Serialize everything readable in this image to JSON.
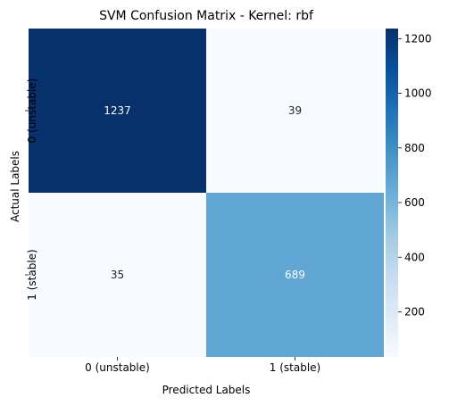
{
  "chart_data": {
    "type": "heatmap",
    "title": "SVM Confusion Matrix - Kernel: rbf",
    "xlabel": "Predicted Labels",
    "ylabel": "Actual Labels",
    "x_categories": [
      "0 (unstable)",
      "1 (stable)"
    ],
    "y_categories": [
      "0 (unstable)",
      "1 (stable)"
    ],
    "values": [
      [
        1237,
        39
      ],
      [
        35,
        689
      ]
    ],
    "colormap": "Blues",
    "colorbar": {
      "range": [
        35,
        1237
      ],
      "ticks": [
        200,
        400,
        600,
        800,
        1000,
        1200
      ]
    },
    "cell_colors": [
      [
        "#08306b",
        "#f7fbff"
      ],
      [
        "#f7fbff",
        "#60a6d2"
      ]
    ],
    "text_colors": [
      [
        "#ffffff",
        "#262626"
      ],
      [
        "#262626",
        "#ffffff"
      ]
    ]
  }
}
